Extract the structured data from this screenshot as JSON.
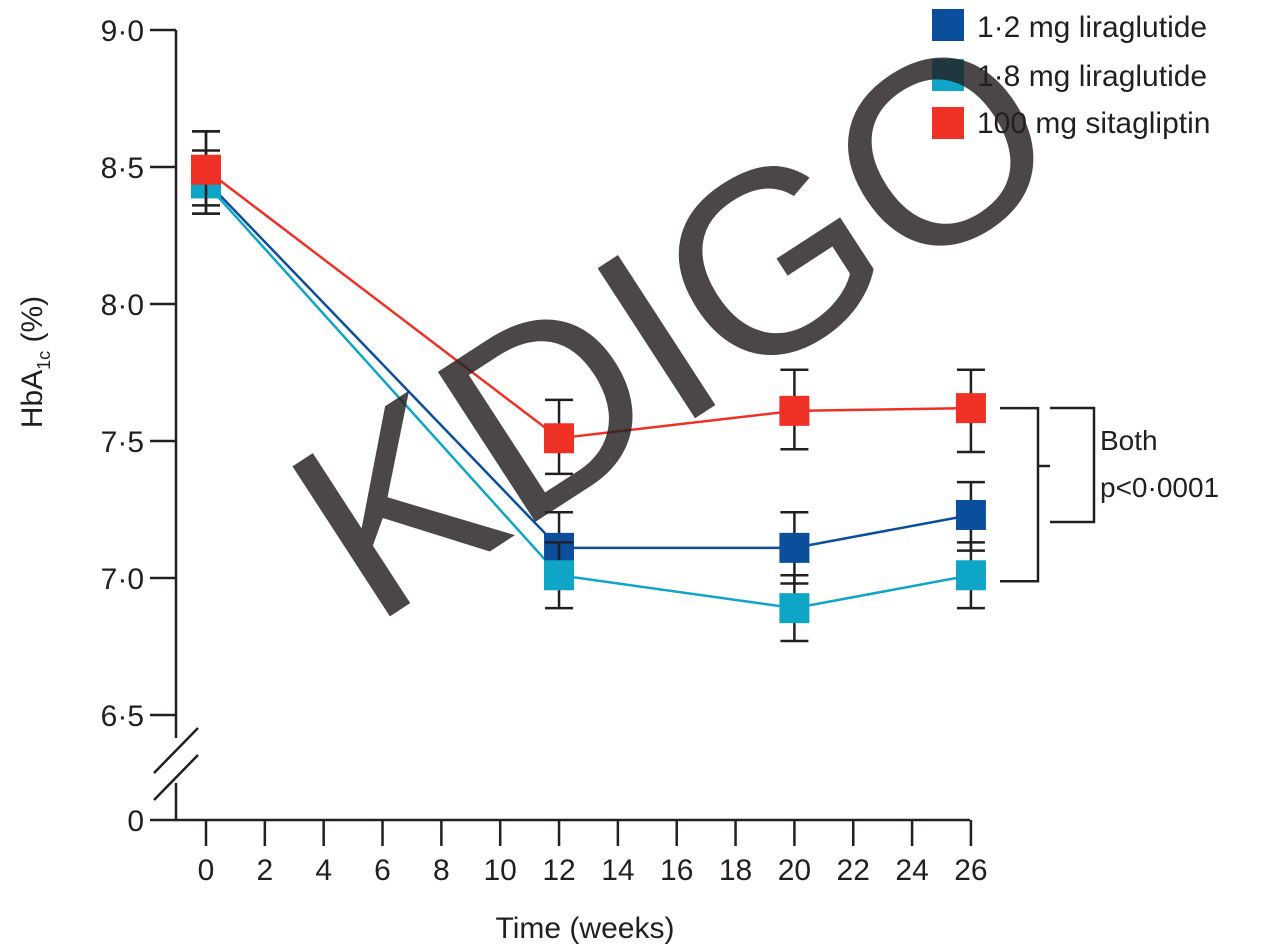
{
  "chart_data": {
    "type": "line",
    "xlabel": "Time (weeks)",
    "ylabel": "HbA1c (%)",
    "ylabel_main": "HbA",
    "ylabel_sub": "1c",
    "ylabel_unit": " (%)",
    "x_ticks": [
      "0",
      "2",
      "4",
      "6",
      "8",
      "10",
      "12",
      "14",
      "16",
      "18",
      "20",
      "22",
      "24",
      "26"
    ],
    "y_ticks": [
      "6·5",
      "7·0",
      "7·5",
      "8·0",
      "8·5",
      "9·0"
    ],
    "y_tick_values": [
      6.5,
      7.0,
      7.5,
      8.0,
      8.5,
      9.0
    ],
    "y_break_tick": "0",
    "xlim": [
      0,
      26
    ],
    "ylim": [
      6.5,
      9.0
    ],
    "axis_break": true,
    "grid": false,
    "legend_position": "top-right",
    "series": [
      {
        "name": "1·2 mg liraglutide",
        "color": "#0b4f9c",
        "x": [
          0,
          12,
          20,
          26
        ],
        "y": [
          8.45,
          7.11,
          7.11,
          7.23
        ],
        "err_low": [
          8.33,
          6.98,
          6.98,
          7.1
        ],
        "err_high": [
          8.63,
          7.24,
          7.24,
          7.35
        ]
      },
      {
        "name": "1·8 mg liraglutide",
        "color": "#0ea5c6",
        "x": [
          0,
          12,
          20,
          26
        ],
        "y": [
          8.44,
          7.01,
          6.89,
          7.01
        ],
        "err_low": [
          8.33,
          6.89,
          6.77,
          6.89
        ],
        "err_high": [
          8.56,
          7.13,
          7.01,
          7.13
        ]
      },
      {
        "name": "100 mg sitagliptin",
        "color": "#ee3124",
        "x": [
          0,
          12,
          20,
          26
        ],
        "y": [
          8.49,
          7.51,
          7.61,
          7.62
        ],
        "err_low": [
          8.36,
          7.38,
          7.47,
          7.46
        ],
        "err_high": [
          8.63,
          7.65,
          7.76,
          7.76
        ]
      }
    ],
    "annotation": {
      "lines": [
        "Both",
        "p<0·0001"
      ]
    },
    "watermark": {
      "text": "KDIGO",
      "color": "#f7a44f"
    }
  }
}
